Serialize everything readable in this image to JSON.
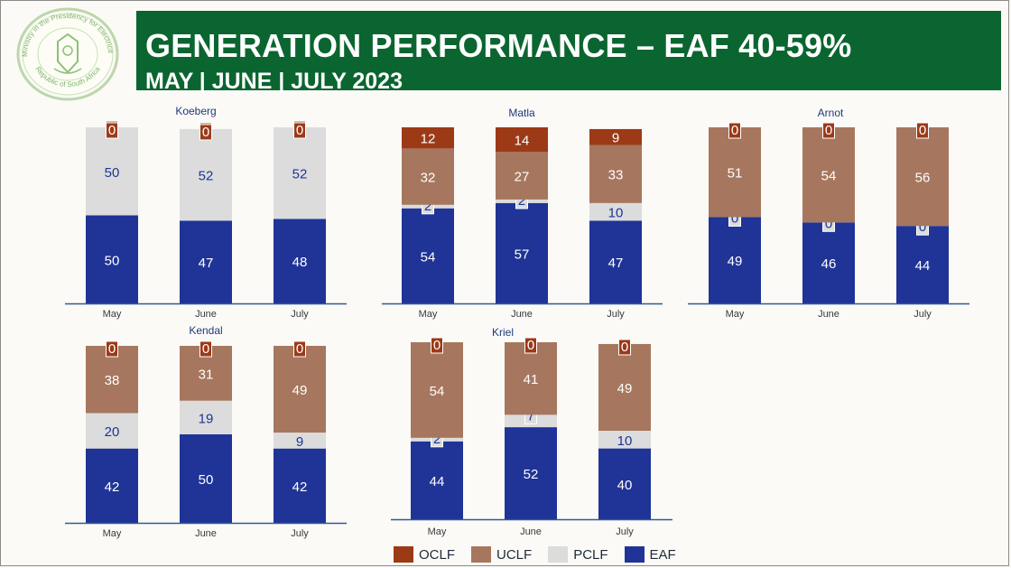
{
  "header": {
    "title": "GENERATION PERFORMANCE – EAF 40-59%",
    "subtitle": "MAY | JUNE | JULY 2023",
    "seal_text_top": "Ministry in the Presidency for Electricity",
    "seal_text_bottom": "Republic of South Africa"
  },
  "colors": {
    "banner": "#0b6530",
    "OCLF": "#9c3a17",
    "UCLF": "#a6775e",
    "PCLF": "#dcdcdc",
    "EAF": "#1f3496",
    "title_text": "#1f3a7a",
    "axis": "#2e5a93"
  },
  "chart_data": [
    {
      "type": "bar",
      "stacked": true,
      "title": "Koeberg",
      "categories": [
        "May",
        "June",
        "July"
      ],
      "series": [
        {
          "name": "EAF",
          "values": [
            50,
            47,
            48
          ]
        },
        {
          "name": "PCLF",
          "values": [
            50,
            52,
            52
          ]
        },
        {
          "name": "UCLF",
          "values": [
            0,
            0,
            0
          ]
        },
        {
          "name": "OCLF",
          "values": [
            0,
            0,
            0
          ]
        }
      ]
    },
    {
      "type": "bar",
      "stacked": true,
      "title": "Matla",
      "categories": [
        "May",
        "June",
        "July"
      ],
      "series": [
        {
          "name": "EAF",
          "values": [
            54,
            57,
            47
          ]
        },
        {
          "name": "PCLF",
          "values": [
            2,
            2,
            10
          ]
        },
        {
          "name": "UCLF",
          "values": [
            32,
            27,
            33
          ]
        },
        {
          "name": "OCLF",
          "values": [
            12,
            14,
            9
          ]
        }
      ]
    },
    {
      "type": "bar",
      "stacked": true,
      "title": "Arnot",
      "categories": [
        "May",
        "June",
        "July"
      ],
      "series": [
        {
          "name": "EAF",
          "values": [
            49,
            46,
            44
          ]
        },
        {
          "name": "PCLF",
          "values": [
            0,
            0,
            0
          ]
        },
        {
          "name": "UCLF",
          "values": [
            51,
            54,
            56
          ]
        },
        {
          "name": "OCLF",
          "values": [
            0,
            0,
            0
          ]
        }
      ]
    },
    {
      "type": "bar",
      "stacked": true,
      "title": "Kendal",
      "categories": [
        "May",
        "June",
        "July"
      ],
      "series": [
        {
          "name": "EAF",
          "values": [
            42,
            50,
            42
          ]
        },
        {
          "name": "PCLF",
          "values": [
            20,
            19,
            9
          ]
        },
        {
          "name": "UCLF",
          "values": [
            38,
            31,
            49
          ]
        },
        {
          "name": "OCLF",
          "values": [
            0,
            0,
            0
          ]
        }
      ]
    },
    {
      "type": "bar",
      "stacked": true,
      "title": "Kriel",
      "categories": [
        "May",
        "June",
        "July"
      ],
      "series": [
        {
          "name": "EAF",
          "values": [
            44,
            52,
            40
          ]
        },
        {
          "name": "PCLF",
          "values": [
            2,
            7,
            10
          ]
        },
        {
          "name": "UCLF",
          "values": [
            54,
            41,
            49
          ]
        },
        {
          "name": "OCLF",
          "values": [
            0,
            0,
            0
          ]
        }
      ]
    }
  ],
  "legend": [
    {
      "name": "OCLF"
    },
    {
      "name": "UCLF"
    },
    {
      "name": "PCLF"
    },
    {
      "name": "EAF"
    }
  ]
}
